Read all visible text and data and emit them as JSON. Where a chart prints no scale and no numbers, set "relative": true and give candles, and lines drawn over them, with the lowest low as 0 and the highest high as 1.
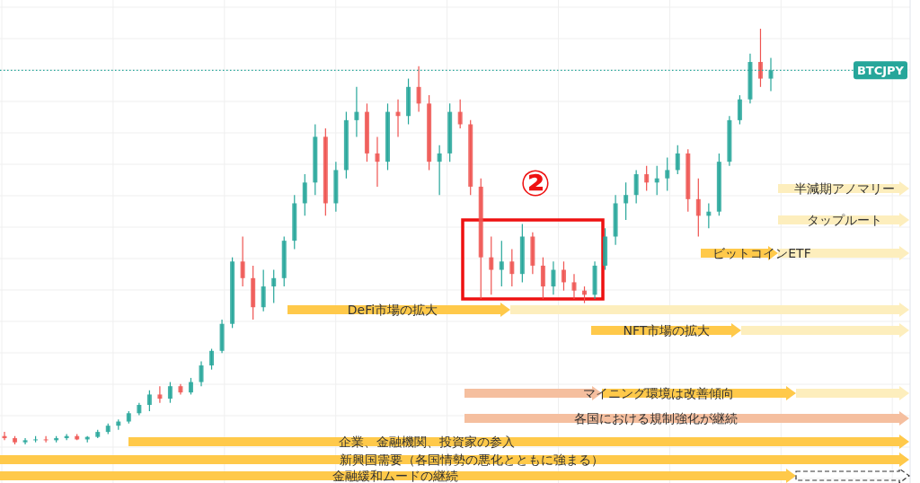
{
  "chart_data": {
    "type": "candlestick",
    "relative": true,
    "grid": true,
    "categories": [
      null,
      null,
      null,
      null,
      null,
      null,
      null,
      null,
      null,
      null,
      null,
      null,
      null,
      null,
      null,
      null,
      null,
      null,
      null,
      null,
      null,
      null,
      null,
      null,
      null,
      null,
      null,
      null,
      null,
      null,
      null,
      null,
      null,
      null,
      null,
      null,
      null,
      null,
      null,
      null,
      null,
      null,
      null,
      null,
      null,
      null,
      null,
      null,
      null,
      null,
      null,
      null,
      null,
      null,
      null,
      null,
      null,
      null,
      null,
      null,
      null,
      null,
      null,
      null,
      null,
      null,
      null,
      null,
      null,
      null,
      null,
      null,
      null,
      null,
      null
    ],
    "ohlc": [
      [
        0.02,
        0.03,
        0.01,
        0.015
      ],
      [
        0.015,
        0.02,
        0.0,
        0.005
      ],
      [
        0.005,
        0.015,
        0.0,
        0.01
      ],
      [
        0.01,
        0.02,
        0.005,
        0.012
      ],
      [
        0.012,
        0.02,
        0.005,
        0.01
      ],
      [
        0.01,
        0.02,
        0.005,
        0.015
      ],
      [
        0.015,
        0.025,
        0.01,
        0.02
      ],
      [
        0.02,
        0.025,
        0.01,
        0.012
      ],
      [
        0.012,
        0.02,
        0.005,
        0.018
      ],
      [
        0.018,
        0.035,
        0.015,
        0.03
      ],
      [
        0.03,
        0.05,
        0.025,
        0.045
      ],
      [
        0.045,
        0.06,
        0.035,
        0.055
      ],
      [
        0.055,
        0.08,
        0.05,
        0.075
      ],
      [
        0.075,
        0.1,
        0.07,
        0.095
      ],
      [
        0.095,
        0.13,
        0.08,
        0.12
      ],
      [
        0.12,
        0.14,
        0.1,
        0.11
      ],
      [
        0.11,
        0.15,
        0.1,
        0.14
      ],
      [
        0.14,
        0.145,
        0.12,
        0.125
      ],
      [
        0.125,
        0.16,
        0.12,
        0.15
      ],
      [
        0.15,
        0.2,
        0.14,
        0.19
      ],
      [
        0.19,
        0.23,
        0.18,
        0.225
      ],
      [
        0.225,
        0.3,
        0.22,
        0.29
      ],
      [
        0.29,
        0.45,
        0.28,
        0.44
      ],
      [
        0.44,
        0.5,
        0.38,
        0.4
      ],
      [
        0.4,
        0.43,
        0.3,
        0.33
      ],
      [
        0.33,
        0.42,
        0.32,
        0.38
      ],
      [
        0.38,
        0.42,
        0.34,
        0.4
      ],
      [
        0.4,
        0.5,
        0.38,
        0.49
      ],
      [
        0.49,
        0.6,
        0.47,
        0.58
      ],
      [
        0.58,
        0.65,
        0.55,
        0.63
      ],
      [
        0.63,
        0.77,
        0.6,
        0.74
      ],
      [
        0.74,
        0.76,
        0.55,
        0.58
      ],
      [
        0.58,
        0.68,
        0.56,
        0.66
      ],
      [
        0.66,
        0.8,
        0.64,
        0.78
      ],
      [
        0.78,
        0.86,
        0.74,
        0.8
      ],
      [
        0.8,
        0.82,
        0.68,
        0.7
      ],
      [
        0.7,
        0.74,
        0.62,
        0.68
      ],
      [
        0.68,
        0.82,
        0.66,
        0.8
      ],
      [
        0.8,
        0.83,
        0.74,
        0.79
      ],
      [
        0.79,
        0.88,
        0.77,
        0.86
      ],
      [
        0.86,
        0.91,
        0.8,
        0.82
      ],
      [
        0.82,
        0.84,
        0.66,
        0.68
      ],
      [
        0.68,
        0.72,
        0.6,
        0.7
      ],
      [
        0.7,
        0.82,
        0.68,
        0.8
      ],
      [
        0.8,
        0.83,
        0.76,
        0.77
      ],
      [
        0.77,
        0.78,
        0.6,
        0.62
      ],
      [
        0.62,
        0.64,
        0.35,
        0.45
      ],
      [
        0.45,
        0.5,
        0.36,
        0.42
      ],
      [
        0.42,
        0.49,
        0.38,
        0.44
      ],
      [
        0.44,
        0.47,
        0.38,
        0.41
      ],
      [
        0.41,
        0.53,
        0.39,
        0.5
      ],
      [
        0.5,
        0.51,
        0.41,
        0.43
      ],
      [
        0.43,
        0.45,
        0.35,
        0.38
      ],
      [
        0.38,
        0.44,
        0.36,
        0.42
      ],
      [
        0.42,
        0.44,
        0.37,
        0.39
      ],
      [
        0.39,
        0.41,
        0.35,
        0.37
      ],
      [
        0.37,
        0.38,
        0.34,
        0.36
      ],
      [
        0.36,
        0.44,
        0.35,
        0.43
      ],
      [
        0.43,
        0.52,
        0.42,
        0.5
      ],
      [
        0.5,
        0.6,
        0.48,
        0.58
      ],
      [
        0.58,
        0.63,
        0.54,
        0.6
      ],
      [
        0.6,
        0.66,
        0.58,
        0.65
      ],
      [
        0.65,
        0.67,
        0.61,
        0.63
      ],
      [
        0.63,
        0.67,
        0.6,
        0.64
      ],
      [
        0.64,
        0.69,
        0.61,
        0.66
      ],
      [
        0.66,
        0.72,
        0.65,
        0.7
      ],
      [
        0.7,
        0.71,
        0.56,
        0.59
      ],
      [
        0.59,
        0.64,
        0.5,
        0.55
      ],
      [
        0.55,
        0.58,
        0.52,
        0.56
      ],
      [
        0.56,
        0.7,
        0.55,
        0.68
      ],
      [
        0.68,
        0.79,
        0.67,
        0.78
      ],
      [
        0.78,
        0.84,
        0.77,
        0.83
      ],
      [
        0.83,
        0.94,
        0.82,
        0.92
      ],
      [
        0.92,
        1.0,
        0.86,
        0.88
      ],
      [
        0.88,
        0.93,
        0.85,
        0.9
      ]
    ],
    "ref_lines": [
      {
        "axis": "y",
        "value": 0.9,
        "label": "BTCJPY",
        "color": "#26a69a",
        "line_style": "dotted"
      }
    ],
    "annotations": [
      "②",
      "DeFi市場の拡大",
      "NFT市場の拡大",
      "半減期アノマリー",
      "タップルート",
      "ビットコインETF",
      "マイニング環境は改善傾向",
      "各国における規制強化が継続",
      "企業、金融機関、投資家の参入",
      "新興国需要（各国情勢の悪化とともに強まる）",
      "金融緩和ムードの継続"
    ]
  }
}
